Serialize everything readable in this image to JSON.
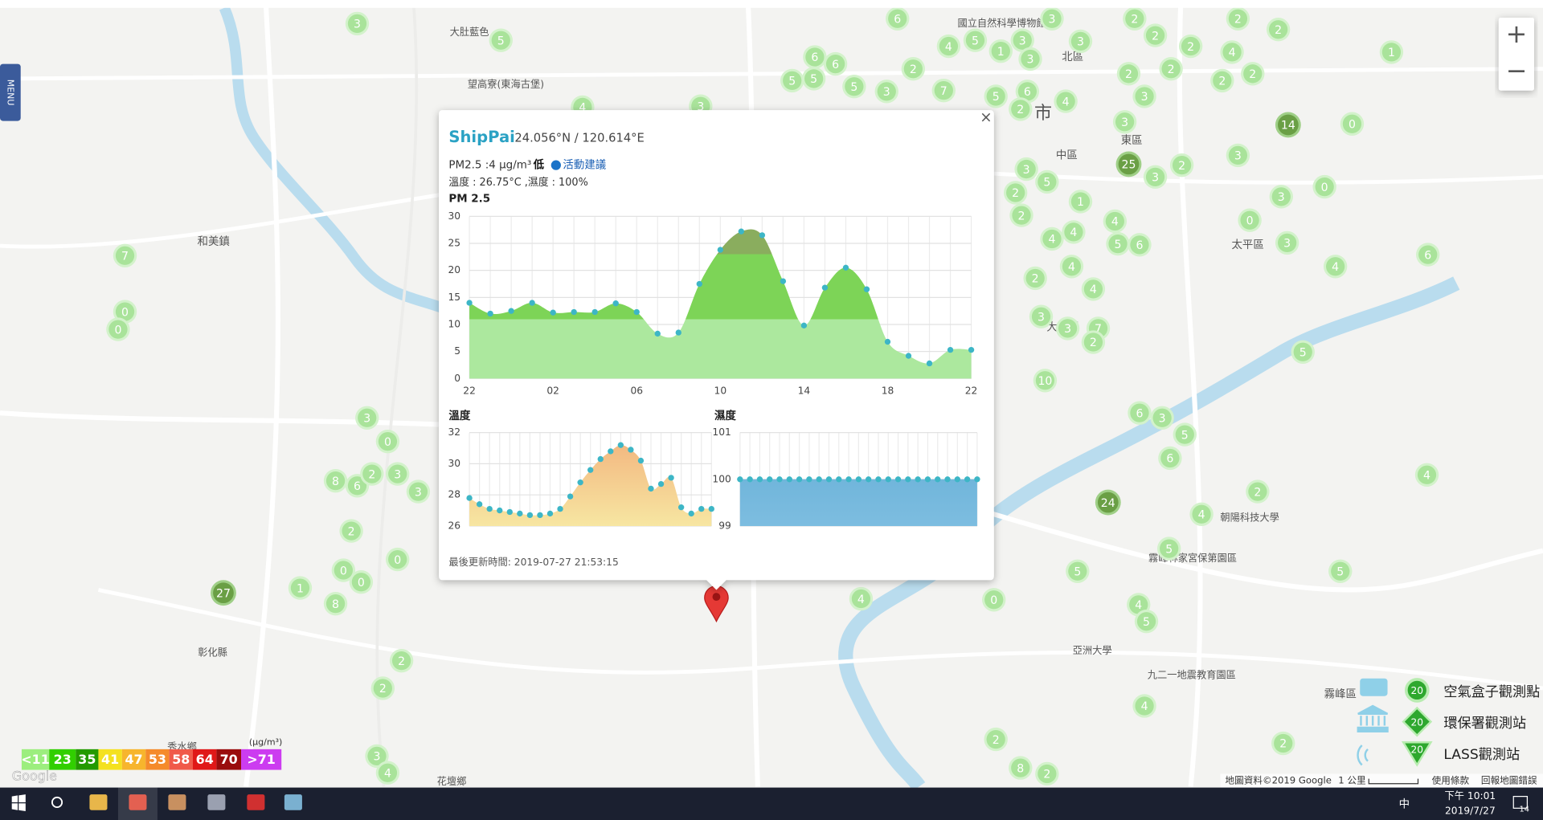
{
  "map": {
    "markers": [
      3,
      5,
      6,
      3,
      3,
      2,
      2,
      2,
      2,
      2,
      4,
      1,
      4,
      5,
      1,
      3,
      3,
      6,
      6,
      5,
      5,
      5,
      3,
      2,
      7,
      5,
      6,
      2,
      4,
      2,
      3,
      2,
      2,
      2,
      14,
      0,
      3,
      25,
      3,
      2,
      3,
      3,
      5,
      2,
      2,
      1,
      4,
      3,
      0,
      0,
      3,
      4,
      4,
      5,
      6,
      4,
      2,
      4,
      4,
      6,
      5,
      3,
      3,
      7,
      2,
      10,
      6,
      3,
      5,
      6,
      2,
      24,
      4,
      4,
      5,
      5,
      5,
      0,
      4,
      4,
      5,
      4,
      2,
      2,
      8,
      2,
      7,
      0,
      0,
      3,
      0,
      8,
      6,
      2,
      3,
      3,
      2,
      0,
      0,
      0,
      1,
      8,
      27,
      2,
      2,
      3,
      4,
      4,
      3
    ],
    "labels": [
      "大肚藍色",
      "望高寮(東海古堡)",
      "和美鎮",
      "彰化縣",
      "花壇鄉",
      "秀水鄉",
      "北區",
      "市",
      "中區",
      "東區",
      "大里區",
      "太平區",
      "霧峰區",
      "亞洲大學",
      "霧峰林家宮保第園區",
      "九二一地震教育園區",
      "朝陽科技大學",
      "國立自然科學博物館"
    ],
    "zoom_in": "+",
    "zoom_out": "−",
    "menu": "MENU",
    "google": "Google",
    "attribution": [
      "地圖資料©2019 Google",
      "1 公里",
      "使用條款",
      "回報地圖錯誤"
    ]
  },
  "pm_legend": {
    "unit": "(μg/m³)",
    "levels": [
      {
        "value": 11,
        "label": "<11",
        "color": "#9cee7e"
      },
      {
        "value": 23,
        "color": "#31cf00"
      },
      {
        "value": 35,
        "color": "#249a00"
      },
      {
        "value": 41,
        "color": "#f4e120"
      },
      {
        "value": 47,
        "color": "#f7b52d"
      },
      {
        "value": 53,
        "color": "#f58b2b"
      },
      {
        "value": 58,
        "color": "#f05a4a"
      },
      {
        "value": 64,
        "color": "#e01818"
      },
      {
        "value": 70,
        "color": "#9a0d0d"
      },
      {
        "value": 71,
        "label": ">71",
        "color": "#cc3cf0"
      }
    ]
  },
  "station_legend": [
    {
      "count": 20,
      "label": "空氣盒子觀測點"
    },
    {
      "count": 20,
      "label": "環保署觀測站"
    },
    {
      "count": 20,
      "label": "LASS觀測站"
    }
  ],
  "popup": {
    "name": "ShipPai",
    "coords": "24.056°N / 120.614°E",
    "pm25": "PM2.5 :4 μg/m³",
    "level": "低",
    "advice": "活動建議",
    "weather": "溫度 : 26.75°C ,濕度 : 100%",
    "updated": "最後更新時間: 2019-07-27 21:53:15",
    "close": "×",
    "charts": [
      {
        "type": "area",
        "title": "PM 2.5",
        "categories": [
          "22",
          null,
          null,
          null,
          "02",
          null,
          null,
          null,
          "06",
          null,
          null,
          null,
          "10",
          null,
          null,
          null,
          "14",
          null,
          null,
          null,
          "18",
          null,
          null,
          null,
          "22"
        ],
        "values": [
          14,
          12,
          12.5,
          14,
          12.2,
          12.3,
          12.3,
          13.9,
          12.3,
          8.3,
          8.5,
          17.5,
          23.8,
          27.2,
          26.5,
          18,
          9.8,
          16.8,
          20.5,
          16.5,
          6.8,
          4.2,
          2.8,
          5.3,
          5.3
        ],
        "ylim": [
          0,
          30
        ],
        "yticks": [
          0,
          5,
          10,
          15,
          20,
          25,
          30
        ],
        "level_colors": [
          "#ace89e",
          "#7dd457",
          "#8aad5e"
        ],
        "dot_color": "#3db6c6",
        "smooth": true
      },
      {
        "type": "area",
        "title": "溫度",
        "categories": [
          null,
          null,
          null,
          null,
          null,
          null,
          null,
          null,
          null,
          null,
          null,
          null,
          null,
          null,
          null,
          null,
          null,
          null,
          null,
          null,
          null,
          null,
          null,
          null,
          null
        ],
        "values": [
          27.8,
          27.4,
          27.1,
          27.0,
          26.9,
          26.8,
          26.7,
          26.7,
          26.8,
          27.1,
          27.9,
          28.8,
          29.6,
          30.3,
          30.8,
          31.2,
          30.9,
          30.2,
          28.4,
          28.7,
          29.1,
          27.2,
          26.8,
          27.1,
          27.1
        ],
        "ylim": [
          26,
          32
        ],
        "yticks": [
          26,
          28,
          30,
          32
        ],
        "color": "#f2b27c",
        "color_low": "#f7e6a2",
        "dot_color": "#3db6c6",
        "smooth": true
      },
      {
        "type": "area",
        "title": "濕度",
        "categories": [
          null,
          null,
          null,
          null,
          null,
          null,
          null,
          null,
          null,
          null,
          null,
          null,
          null,
          null,
          null,
          null,
          null,
          null,
          null,
          null,
          null,
          null,
          null,
          null,
          null
        ],
        "values": [
          100,
          100,
          100,
          100,
          100,
          100,
          100,
          100,
          100,
          100,
          100,
          100,
          100,
          100,
          100,
          100,
          100,
          100,
          100,
          100,
          100,
          100,
          100,
          100,
          100
        ],
        "ylim": [
          99,
          101
        ],
        "yticks": [
          99,
          100,
          101
        ],
        "color": "#64aed6",
        "color_low": "#7dbde0",
        "dot_color": "#3db6c6",
        "smooth": false
      }
    ]
  },
  "taskbar": {
    "time": "下午 10:01",
    "date": "2019/7/27",
    "ime": "中",
    "notifications": 14
  }
}
